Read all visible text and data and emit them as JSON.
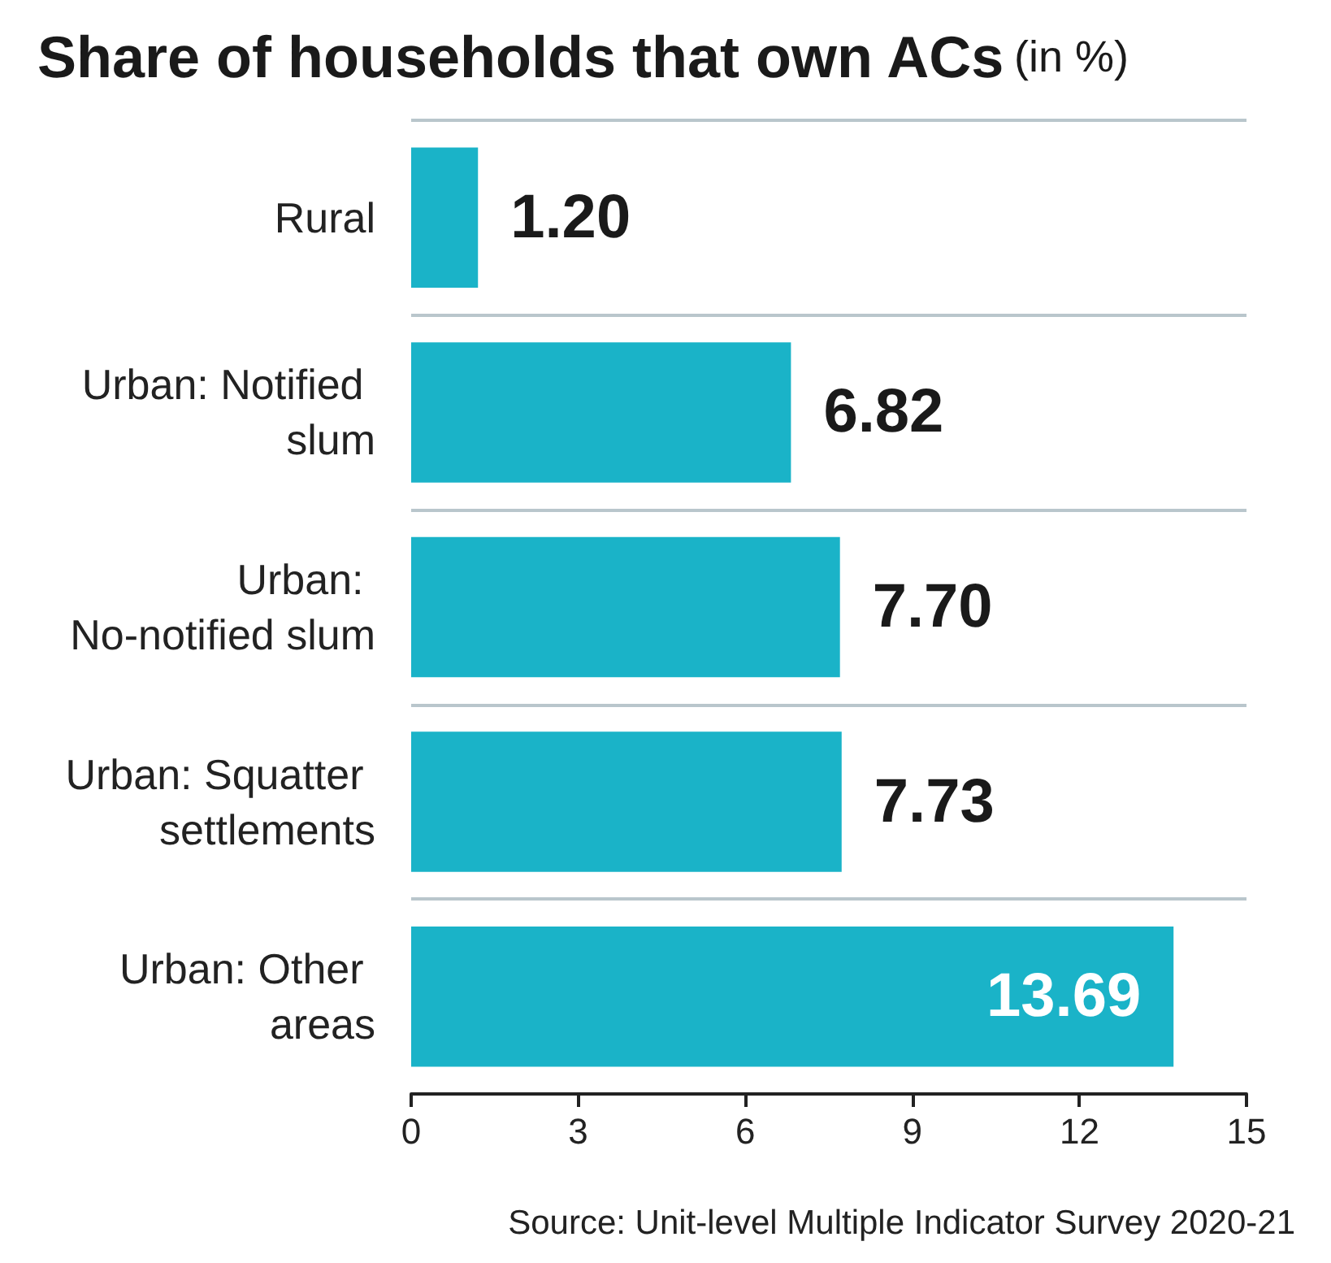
{
  "chart_data": {
    "type": "bar",
    "orientation": "horizontal",
    "title": "Share of households that own ACs",
    "subtitle": "(in %)",
    "categories": [
      "Rural",
      "Urban: Notified slum",
      "Urban: No-notified slum",
      "Urban: Squatter settlements",
      "Urban: Other areas"
    ],
    "values": [
      1.2,
      6.82,
      7.7,
      7.73,
      13.69
    ],
    "value_labels": [
      "1.20",
      "6.82",
      "7.70",
      "7.73",
      "13.69"
    ],
    "color": "#1ab3c8",
    "xlim": [
      0,
      15
    ],
    "xticks": [
      0,
      3,
      6,
      9,
      12,
      15
    ],
    "grid": "y",
    "annotations": [
      "Source: Unit-level Multiple Indicator Survey 2020-21"
    ]
  }
}
